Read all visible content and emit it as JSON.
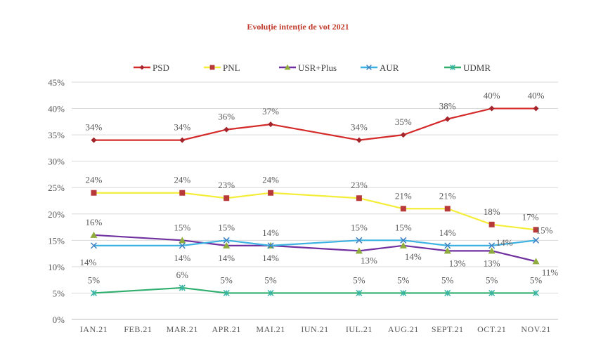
{
  "chart_data": {
    "type": "line",
    "title": "Evoluție intenție de vot 2021",
    "xlabel": "",
    "ylabel": "",
    "ylim": [
      0,
      45
    ],
    "yticks": [
      "0%",
      "5%",
      "10%",
      "15%",
      "20%",
      "25%",
      "30%",
      "35%",
      "40%",
      "45%"
    ],
    "grid": true,
    "legend": "top",
    "categories": [
      "IAN.21",
      "FEB.21",
      "MAR.21",
      "APR.21",
      "MAI.21",
      "IUN.21",
      "IUL.21",
      "AUG.21",
      "SEPT.21",
      "OCT.21",
      "NOV.21"
    ],
    "series": [
      {
        "name": "PSD",
        "color": "#d42a2a",
        "marker_color": "#a3242a",
        "marker": "diamond",
        "values": [
          34,
          null,
          34,
          36,
          37,
          null,
          34,
          35,
          38,
          40,
          40
        ]
      },
      {
        "name": "PNL",
        "color": "#f4ee3a",
        "marker_color": "#b8393a",
        "marker": "square",
        "values": [
          24,
          null,
          24,
          23,
          24,
          null,
          23,
          21,
          21,
          18,
          17
        ]
      },
      {
        "name": "USR+Plus",
        "color": "#7030a0",
        "marker_color": "#8fac3c",
        "marker": "triangle",
        "values": [
          16,
          null,
          15,
          14,
          14,
          null,
          13,
          14,
          13,
          13,
          11
        ]
      },
      {
        "name": "AUR",
        "color": "#3cb2e2",
        "marker_color": "#3f7fbf",
        "marker": "x",
        "values": [
          14,
          null,
          14,
          15,
          14,
          null,
          15,
          15,
          14,
          14,
          15
        ]
      },
      {
        "name": "UDMR",
        "color": "#2fae6e",
        "marker_color": "#3ab5a5",
        "marker": "asterisk",
        "values": [
          5,
          null,
          6,
          5,
          5,
          null,
          5,
          5,
          5,
          5,
          5
        ]
      }
    ]
  }
}
